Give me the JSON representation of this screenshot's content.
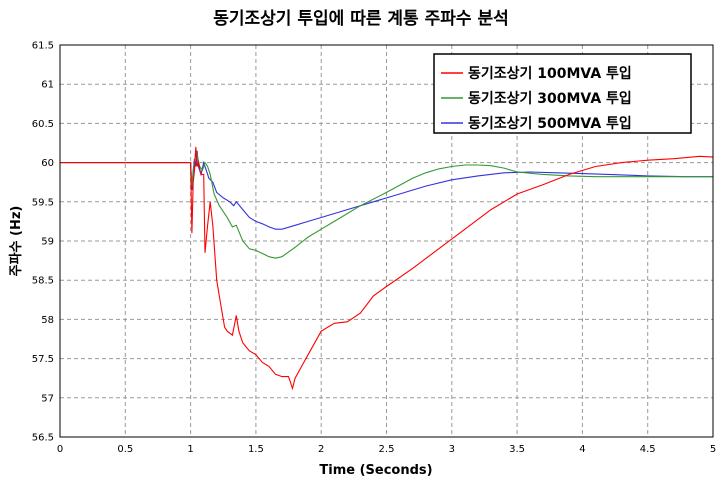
{
  "chart_data": {
    "type": "line",
    "title": "동기조상기 투입에 따른 계통 주파수 분석",
    "xlabel": "Time (Seconds)",
    "ylabel": "주파수 (Hz)",
    "xlim": [
      0,
      5
    ],
    "ylim": [
      56.5,
      61.5
    ],
    "xticks": [
      "0",
      "0.5",
      "1",
      "1.5",
      "2",
      "2.5",
      "3",
      "3.5",
      "4",
      "4.5",
      "5"
    ],
    "yticks": [
      "61.5",
      "61",
      "60.5",
      "60",
      "59.5",
      "59",
      "58.5",
      "58",
      "57.5",
      "57",
      "56.5"
    ],
    "grid": true,
    "legend_position": "top-right",
    "series": [
      {
        "name": "동기조상기 100MVA 투입",
        "color": "#ff0000",
        "x": [
          0,
          1.0,
          1.01,
          1.02,
          1.03,
          1.04,
          1.05,
          1.06,
          1.08,
          1.1,
          1.11,
          1.13,
          1.15,
          1.17,
          1.2,
          1.23,
          1.26,
          1.28,
          1.32,
          1.35,
          1.37,
          1.4,
          1.45,
          1.5,
          1.55,
          1.6,
          1.65,
          1.7,
          1.75,
          1.78,
          1.8,
          1.85,
          1.9,
          2.0,
          2.1,
          2.2,
          2.3,
          2.4,
          2.5,
          2.7,
          2.9,
          3.1,
          3.3,
          3.5,
          3.7,
          3.9,
          4.1,
          4.3,
          4.5,
          4.7,
          4.9,
          5.0
        ],
        "y": [
          60.0,
          60.0,
          59.1,
          59.75,
          59.9,
          60.2,
          59.95,
          60.0,
          59.85,
          59.85,
          58.85,
          59.2,
          59.5,
          59.2,
          58.5,
          58.2,
          57.9,
          57.85,
          57.8,
          58.05,
          57.85,
          57.7,
          57.6,
          57.55,
          57.45,
          57.4,
          57.3,
          57.27,
          57.27,
          57.12,
          57.25,
          57.4,
          57.55,
          57.85,
          57.95,
          57.97,
          58.08,
          58.3,
          58.42,
          58.65,
          58.9,
          59.15,
          59.4,
          59.6,
          59.72,
          59.85,
          59.95,
          60.0,
          60.03,
          60.05,
          60.08,
          60.07
        ]
      },
      {
        "name": "동기조상기 300MVA 투입",
        "color": "#339933",
        "x": [
          0,
          1.0,
          1.01,
          1.02,
          1.03,
          1.04,
          1.05,
          1.07,
          1.09,
          1.11,
          1.13,
          1.15,
          1.18,
          1.22,
          1.28,
          1.32,
          1.35,
          1.4,
          1.45,
          1.5,
          1.55,
          1.6,
          1.65,
          1.7,
          1.8,
          1.9,
          2.0,
          2.1,
          2.3,
          2.5,
          2.7,
          2.8,
          2.9,
          3.0,
          3.1,
          3.2,
          3.3,
          3.4,
          3.5,
          3.7,
          3.9,
          4.1,
          4.3,
          4.5,
          4.7,
          4.9,
          5.0
        ],
        "y": [
          60.0,
          60.0,
          59.7,
          59.85,
          60.0,
          60.15,
          60.1,
          59.95,
          59.9,
          60.0,
          59.95,
          59.85,
          59.6,
          59.45,
          59.3,
          59.18,
          59.2,
          59.0,
          58.9,
          58.88,
          58.84,
          58.8,
          58.78,
          58.8,
          58.92,
          59.05,
          59.15,
          59.25,
          59.45,
          59.62,
          59.8,
          59.87,
          59.92,
          59.95,
          59.97,
          59.97,
          59.96,
          59.93,
          59.88,
          59.85,
          59.83,
          59.82,
          59.82,
          59.82,
          59.82,
          59.82,
          59.82
        ]
      },
      {
        "name": "동기조상기 500MVA 투입",
        "color": "#3333dd",
        "x": [
          0,
          1.0,
          1.01,
          1.02,
          1.03,
          1.04,
          1.05,
          1.06,
          1.08,
          1.1,
          1.12,
          1.14,
          1.17,
          1.2,
          1.25,
          1.3,
          1.33,
          1.35,
          1.4,
          1.45,
          1.5,
          1.55,
          1.6,
          1.65,
          1.7,
          1.8,
          1.9,
          2.0,
          2.2,
          2.4,
          2.6,
          2.8,
          3.0,
          3.2,
          3.4,
          3.6,
          3.8,
          4.0,
          4.2,
          4.5,
          4.8,
          5.0
        ],
        "y": [
          60.0,
          60.0,
          59.65,
          59.9,
          60.05,
          59.95,
          60.15,
          59.95,
          59.85,
          60.0,
          59.9,
          59.8,
          59.75,
          59.62,
          59.55,
          59.5,
          59.45,
          59.5,
          59.4,
          59.3,
          59.25,
          59.22,
          59.18,
          59.15,
          59.15,
          59.2,
          59.25,
          59.3,
          59.4,
          59.5,
          59.6,
          59.7,
          59.78,
          59.83,
          59.87,
          59.88,
          59.87,
          59.86,
          59.85,
          59.83,
          59.82,
          59.82
        ]
      }
    ]
  }
}
